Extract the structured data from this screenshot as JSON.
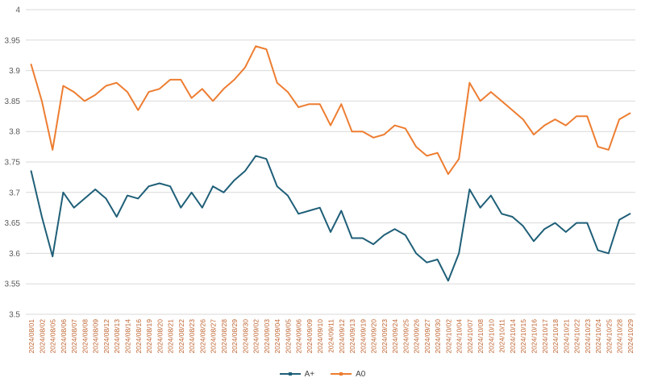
{
  "chart": {
    "style": {
      "background": "#ffffff",
      "grid_color": "#d9d9d9",
      "y_label_color": "#595959",
      "x_label_color": "#bf6430",
      "legend_text_color": "#404040"
    },
    "legend": {
      "items": [
        {
          "label": "A+",
          "color": "#1f5f78"
        },
        {
          "label": "A0",
          "color": "#ed7d31"
        }
      ],
      "position": "bottom-center"
    }
  },
  "chart_data": {
    "type": "line",
    "title": "",
    "xlabel": "",
    "ylabel": "",
    "ylim": [
      3.5,
      4.0
    ],
    "yticks": [
      3.5,
      3.55,
      3.6,
      3.65,
      3.7,
      3.75,
      3.8,
      3.85,
      3.9,
      3.95,
      4.0
    ],
    "grid": true,
    "legend_position": "bottom",
    "x_label_rotation": -90,
    "categories": [
      "2024/08/01",
      "2024/08/02",
      "2024/08/05",
      "2024/08/06",
      "2024/08/07",
      "2024/08/08",
      "2024/08/09",
      "2024/08/12",
      "2024/08/13",
      "2024/08/14",
      "2024/08/16",
      "2024/08/19",
      "2024/08/20",
      "2024/08/21",
      "2024/08/22",
      "2024/08/23",
      "2024/08/26",
      "2024/08/27",
      "2024/08/28",
      "2024/08/29",
      "2024/08/30",
      "2024/09/02",
      "2024/09/03",
      "2024/09/04",
      "2024/09/05",
      "2024/09/06",
      "2024/09/09",
      "2024/09/10",
      "2024/09/11",
      "2024/09/12",
      "2024/09/13",
      "2024/09/19",
      "2024/09/20",
      "2024/09/23",
      "2024/09/24",
      "2024/09/25",
      "2024/09/26",
      "2024/09/27",
      "2024/09/30",
      "2024/10/02",
      "2024/10/04",
      "2024/10/07",
      "2024/10/08",
      "2024/10/10",
      "2024/10/11",
      "2024/10/14",
      "2024/10/15",
      "2024/10/16",
      "2024/10/17",
      "2024/10/18",
      "2024/10/21",
      "2024/10/22",
      "2024/10/23",
      "2024/10/24",
      "2024/10/25",
      "2024/10/28",
      "2024/10/29"
    ],
    "series": [
      {
        "name": "A+",
        "color": "#1f5f78",
        "values": [
          3.735,
          3.66,
          3.595,
          3.7,
          3.675,
          3.69,
          3.705,
          3.69,
          3.66,
          3.695,
          3.69,
          3.71,
          3.715,
          3.71,
          3.675,
          3.7,
          3.675,
          3.71,
          3.7,
          3.72,
          3.735,
          3.76,
          3.755,
          3.71,
          3.695,
          3.665,
          3.67,
          3.675,
          3.635,
          3.67,
          3.625,
          3.625,
          3.615,
          3.63,
          3.64,
          3.63,
          3.6,
          3.585,
          3.59,
          3.555,
          3.6,
          3.705,
          3.675,
          3.695,
          3.665,
          3.66,
          3.645,
          3.62,
          3.64,
          3.65,
          3.635,
          3.65,
          3.65,
          3.605,
          3.6,
          3.655,
          3.665
        ]
      },
      {
        "name": "A0",
        "color": "#ed7d31",
        "values": [
          3.91,
          3.85,
          3.77,
          3.875,
          3.865,
          3.85,
          3.86,
          3.875,
          3.88,
          3.865,
          3.835,
          3.865,
          3.87,
          3.885,
          3.885,
          3.855,
          3.87,
          3.85,
          3.87,
          3.885,
          3.905,
          3.94,
          3.935,
          3.88,
          3.865,
          3.84,
          3.845,
          3.845,
          3.81,
          3.845,
          3.8,
          3.8,
          3.79,
          3.795,
          3.81,
          3.805,
          3.775,
          3.76,
          3.765,
          3.73,
          3.755,
          3.88,
          3.85,
          3.865,
          3.85,
          3.835,
          3.82,
          3.795,
          3.81,
          3.82,
          3.81,
          3.825,
          3.825,
          3.775,
          3.77,
          3.82,
          3.83
        ]
      }
    ]
  }
}
